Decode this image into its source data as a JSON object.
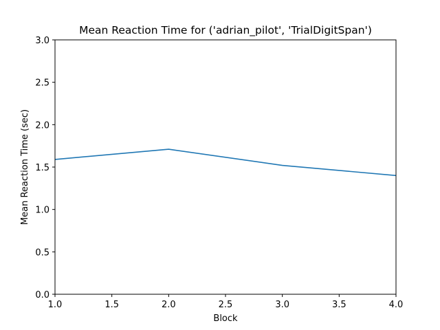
{
  "chart_data": {
    "type": "line",
    "title": "Mean Reaction Time for ('adrian_pilot', 'TrialDigitSpan')",
    "xlabel": "Block",
    "ylabel": "Mean Reaction Time (sec)",
    "xlim": [
      1.0,
      4.0
    ],
    "ylim": [
      0.0,
      3.0
    ],
    "xticks": [
      "1.0",
      "1.5",
      "2.0",
      "2.5",
      "3.0",
      "3.5",
      "4.0"
    ],
    "yticks": [
      "0.0",
      "0.5",
      "1.0",
      "1.5",
      "2.0",
      "2.5",
      "3.0"
    ],
    "grid": false,
    "legend": false,
    "series": [
      {
        "color": "#1f77b4",
        "x": [
          1,
          2,
          3,
          4
        ],
        "y": [
          1.59,
          1.71,
          1.52,
          1.4
        ]
      }
    ]
  }
}
